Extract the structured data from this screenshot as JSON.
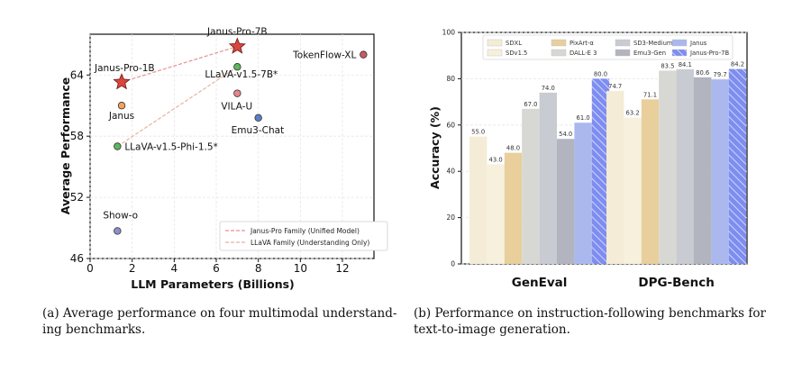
{
  "chart_data": [
    {
      "type": "scatter",
      "xlabel": "LLM Parameters (Billions)",
      "ylabel": "Average Performance",
      "xlim": [
        0,
        13.5
      ],
      "ylim": [
        46,
        68
      ],
      "xticks": [
        "0",
        "2",
        "4",
        "6",
        "8",
        "10",
        "12"
      ],
      "yticks": [
        "46",
        "52",
        "58",
        "64"
      ],
      "grid": true,
      "legend_position": "bottom-right",
      "points": [
        {
          "label": "Janus-Pro-1B",
          "x": 1.5,
          "y": 63.3,
          "marker": "star",
          "color": "#d8463f"
        },
        {
          "label": "Janus-Pro-7B",
          "x": 7.0,
          "y": 66.8,
          "marker": "star",
          "color": "#d8463f"
        },
        {
          "label": "Janus",
          "x": 1.5,
          "y": 61.0,
          "marker": "circle",
          "color": "#f0a35a"
        },
        {
          "label": "LLaVA-v1.5-7B*",
          "x": 7.0,
          "y": 64.8,
          "marker": "circle",
          "color": "#5cb85c"
        },
        {
          "label": "LLaVA-v1.5-Phi-1.5*",
          "x": 1.3,
          "y": 57.0,
          "marker": "circle",
          "color": "#5cb85c"
        },
        {
          "label": "VILA-U",
          "x": 7.0,
          "y": 62.2,
          "marker": "circle",
          "color": "#e8848e"
        },
        {
          "label": "Emu3-Chat",
          "x": 8.0,
          "y": 59.8,
          "marker": "circle",
          "color": "#5b7ec2"
        },
        {
          "label": "TokenFlow-XL",
          "x": 13.0,
          "y": 66.0,
          "marker": "circle",
          "color": "#c85a64"
        },
        {
          "label": "Show-o",
          "x": 1.3,
          "y": 48.7,
          "marker": "circle",
          "color": "#8c8fc9"
        }
      ],
      "lines": [
        {
          "name": "Janus-Pro Family (Unified Model)",
          "from": [
            1.5,
            63.3
          ],
          "to": [
            7.0,
            66.8
          ],
          "color": "#e89090"
        },
        {
          "name": "LLaVA Family (Understanding Only)",
          "from": [
            1.3,
            57.0
          ],
          "to": [
            7.0,
            64.8
          ],
          "color": "#e8b0a0"
        }
      ],
      "legend": [
        "Janus-Pro Family (Unified Model)",
        "LLaVA Family (Understanding Only)"
      ]
    },
    {
      "type": "bar",
      "ylabel": "Accuracy (%)",
      "ylim": [
        0,
        100
      ],
      "yticks": [
        "0",
        "20",
        "40",
        "60",
        "80",
        "100"
      ],
      "categories": [
        "GenEval",
        "DPG-Bench"
      ],
      "grid": true,
      "legend_position": "top",
      "series": [
        {
          "name": "SDXL",
          "values": [
            55.0,
            74.7
          ],
          "color": "#f4ecd6",
          "hatch": false
        },
        {
          "name": "SDv1.5",
          "values": [
            43.0,
            63.2
          ],
          "color": "#f6f0dc",
          "hatch": false
        },
        {
          "name": "PixArt-α",
          "values": [
            48.0,
            71.1
          ],
          "color": "#e8cf9c",
          "hatch": false
        },
        {
          "name": "DALL-E 3",
          "values": [
            67.0,
            83.5
          ],
          "color": "#d7d7d3",
          "hatch": false
        },
        {
          "name": "SD3-Medium",
          "values": [
            74.0,
            84.1
          ],
          "color": "#c9cbd2",
          "hatch": false
        },
        {
          "name": "Emu3-Gen",
          "values": [
            54.0,
            80.6
          ],
          "color": "#b2b4bf",
          "hatch": false
        },
        {
          "name": "Janus",
          "values": [
            61.0,
            79.7
          ],
          "color": "#aab8ee",
          "hatch": false
        },
        {
          "name": "Janus-Pro-7B",
          "values": [
            80.0,
            84.2
          ],
          "color": "#7e8df0",
          "hatch": true
        }
      ],
      "value_labels": [
        [
          "55.0",
          "43.0",
          "48.0",
          "67.0",
          "74.0",
          "54.0",
          "61.0",
          "80.0"
        ],
        [
          "74.7",
          "63.2",
          "71.1",
          "83.5",
          "84.1",
          "80.6",
          "79.7",
          "84.2"
        ]
      ]
    }
  ],
  "captions": {
    "a": "(a) Average performance on four multimodal understand-ing benchmarks.",
    "b": "(b) Performance on instruction-following benchmarks for text-to-image generation."
  }
}
